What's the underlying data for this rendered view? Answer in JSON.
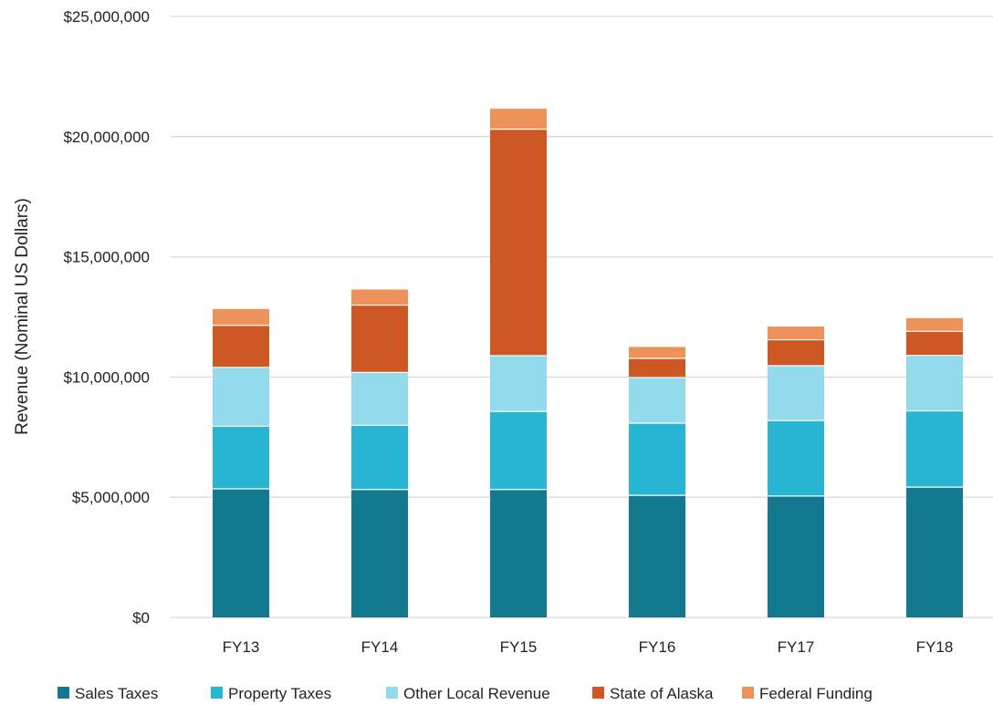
{
  "chart_data": {
    "type": "bar",
    "stacked": true,
    "title": "",
    "xlabel": "",
    "ylabel": "Revenue (Nominal US Dollars)",
    "ylim": [
      0,
      25000000
    ],
    "ytick_values": [
      0,
      5000000,
      10000000,
      15000000,
      20000000,
      25000000
    ],
    "ytick_labels": [
      "$0",
      "$5,000,000",
      "$10,000,000",
      "$15,000,000",
      "$20,000,000",
      "$25,000,000"
    ],
    "grid": true,
    "legend_position": "bottom",
    "categories": [
      "FY13",
      "FY14",
      "FY15",
      "FY16",
      "FY17",
      "FY18"
    ],
    "series": [
      {
        "name": "Sales Taxes",
        "color": "#12798F",
        "values": [
          5350000,
          5320000,
          5320000,
          5080000,
          5050000,
          5420000
        ]
      },
      {
        "name": "Property Taxes",
        "color": "#27B5D3",
        "values": [
          2600000,
          2670000,
          3250000,
          3000000,
          3140000,
          3170000
        ]
      },
      {
        "name": "Other Local Revenue",
        "color": "#93DBEC",
        "values": [
          2450000,
          2200000,
          2320000,
          1900000,
          2280000,
          2310000
        ]
      },
      {
        "name": "State of Alaska",
        "color": "#CD5823",
        "values": [
          1750000,
          2800000,
          9420000,
          800000,
          1080000,
          1000000
        ]
      },
      {
        "name": "Federal Funding",
        "color": "#EE925C",
        "values": [
          680000,
          650000,
          850000,
          470000,
          550000,
          550000
        ]
      }
    ]
  }
}
